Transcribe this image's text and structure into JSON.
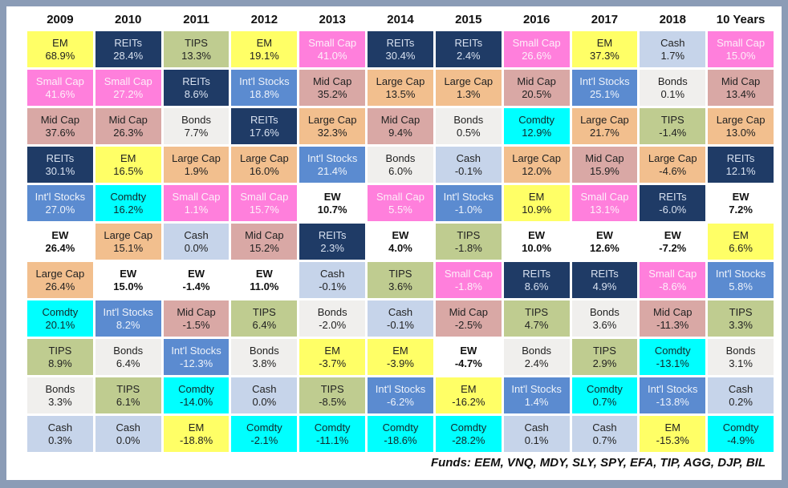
{
  "frame": {
    "border_color": "#8B9CB6",
    "background": "#FFFFFF"
  },
  "footer": {
    "text": "Funds: EEM, VNQ, MDY, SLY, SPY, EFA, TIP, AGG, DJP, BIL"
  },
  "asset_styles": {
    "EM": {
      "bg": "#FFFF66",
      "fg": "#222222"
    },
    "REITs": {
      "bg": "#1F3B66",
      "fg": "#D7E0EF"
    },
    "TIPS": {
      "bg": "#BFCC90",
      "fg": "#222222"
    },
    "Small Cap": {
      "bg": "#FF7FDC",
      "fg": "#FDEFF9"
    },
    "Mid Cap": {
      "bg": "#D9A8A5",
      "fg": "#222222"
    },
    "Int'l Stocks": {
      "bg": "#5B8BD0",
      "fg": "#EDF2FA"
    },
    "Large Cap": {
      "bg": "#F2BF8E",
      "fg": "#222222"
    },
    "EW": {
      "bg": "#FFFFFF",
      "fg": "#111111"
    },
    "Comdty": {
      "bg": "#00FFFF",
      "fg": "#12292B"
    },
    "Bonds": {
      "bg": "#F0EFED",
      "fg": "#222222"
    },
    "Cash": {
      "bg": "#C6D4EA",
      "fg": "#222222"
    }
  },
  "chart_data": {
    "type": "table",
    "title": "Asset class total returns ranked by year",
    "legend_position": "none",
    "grid": "cell-matrix with 3px white gutters",
    "value_format": "percent, one decimal",
    "columns": [
      {
        "label": "2009",
        "rows": [
          {
            "asset": "EM",
            "value": 68.9
          },
          {
            "asset": "Small Cap",
            "value": 41.6
          },
          {
            "asset": "Mid Cap",
            "value": 37.6
          },
          {
            "asset": "REITs",
            "value": 30.1
          },
          {
            "asset": "Int'l Stocks",
            "value": 27.0
          },
          {
            "asset": "EW",
            "value": 26.4
          },
          {
            "asset": "Large Cap",
            "value": 26.4
          },
          {
            "asset": "Comdty",
            "value": 20.1
          },
          {
            "asset": "TIPS",
            "value": 8.9
          },
          {
            "asset": "Bonds",
            "value": 3.3
          },
          {
            "asset": "Cash",
            "value": 0.3
          }
        ]
      },
      {
        "label": "2010",
        "rows": [
          {
            "asset": "REITs",
            "value": 28.4
          },
          {
            "asset": "Small Cap",
            "value": 27.2
          },
          {
            "asset": "Mid Cap",
            "value": 26.3
          },
          {
            "asset": "EM",
            "value": 16.5
          },
          {
            "asset": "Comdty",
            "value": 16.2
          },
          {
            "asset": "Large Cap",
            "value": 15.1
          },
          {
            "asset": "EW",
            "value": 15.0
          },
          {
            "asset": "Int'l Stocks",
            "value": 8.2
          },
          {
            "asset": "Bonds",
            "value": 6.4
          },
          {
            "asset": "TIPS",
            "value": 6.1
          },
          {
            "asset": "Cash",
            "value": 0.0
          }
        ]
      },
      {
        "label": "2011",
        "rows": [
          {
            "asset": "TIPS",
            "value": 13.3
          },
          {
            "asset": "REITs",
            "value": 8.6
          },
          {
            "asset": "Bonds",
            "value": 7.7
          },
          {
            "asset": "Large Cap",
            "value": 1.9
          },
          {
            "asset": "Small Cap",
            "value": 1.1
          },
          {
            "asset": "Cash",
            "value": 0.0
          },
          {
            "asset": "EW",
            "value": -1.4
          },
          {
            "asset": "Mid Cap",
            "value": -1.5
          },
          {
            "asset": "Int'l Stocks",
            "value": -12.3
          },
          {
            "asset": "Comdty",
            "value": -14.0
          },
          {
            "asset": "EM",
            "value": -18.8
          }
        ]
      },
      {
        "label": "2012",
        "rows": [
          {
            "asset": "EM",
            "value": 19.1
          },
          {
            "asset": "Int'l Stocks",
            "value": 18.8
          },
          {
            "asset": "REITs",
            "value": 17.6
          },
          {
            "asset": "Large Cap",
            "value": 16.0
          },
          {
            "asset": "Small Cap",
            "value": 15.7
          },
          {
            "asset": "Mid Cap",
            "value": 15.2
          },
          {
            "asset": "EW",
            "value": 11.0
          },
          {
            "asset": "TIPS",
            "value": 6.4
          },
          {
            "asset": "Bonds",
            "value": 3.8
          },
          {
            "asset": "Cash",
            "value": 0.0
          },
          {
            "asset": "Comdty",
            "value": -2.1
          }
        ]
      },
      {
        "label": "2013",
        "rows": [
          {
            "asset": "Small Cap",
            "value": 41.0
          },
          {
            "asset": "Mid Cap",
            "value": 35.2
          },
          {
            "asset": "Large Cap",
            "value": 32.3
          },
          {
            "asset": "Int'l Stocks",
            "value": 21.4
          },
          {
            "asset": "EW",
            "value": 10.7
          },
          {
            "asset": "REITs",
            "value": 2.3
          },
          {
            "asset": "Cash",
            "value": -0.1
          },
          {
            "asset": "Bonds",
            "value": -2.0
          },
          {
            "asset": "EM",
            "value": -3.7
          },
          {
            "asset": "TIPS",
            "value": -8.5
          },
          {
            "asset": "Comdty",
            "value": -11.1
          }
        ]
      },
      {
        "label": "2014",
        "rows": [
          {
            "asset": "REITs",
            "value": 30.4
          },
          {
            "asset": "Large Cap",
            "value": 13.5
          },
          {
            "asset": "Mid Cap",
            "value": 9.4
          },
          {
            "asset": "Bonds",
            "value": 6.0
          },
          {
            "asset": "Small Cap",
            "value": 5.5
          },
          {
            "asset": "EW",
            "value": 4.0
          },
          {
            "asset": "TIPS",
            "value": 3.6
          },
          {
            "asset": "Cash",
            "value": -0.1
          },
          {
            "asset": "EM",
            "value": -3.9
          },
          {
            "asset": "Int'l Stocks",
            "value": -6.2
          },
          {
            "asset": "Comdty",
            "value": -18.6
          }
        ]
      },
      {
        "label": "2015",
        "rows": [
          {
            "asset": "REITs",
            "value": 2.4
          },
          {
            "asset": "Large Cap",
            "value": 1.3
          },
          {
            "asset": "Bonds",
            "value": 0.5
          },
          {
            "asset": "Cash",
            "value": -0.1
          },
          {
            "asset": "Int'l Stocks",
            "value": -1.0
          },
          {
            "asset": "TIPS",
            "value": -1.8
          },
          {
            "asset": "Small Cap",
            "value": -1.8
          },
          {
            "asset": "Mid Cap",
            "value": -2.5
          },
          {
            "asset": "EW",
            "value": -4.7
          },
          {
            "asset": "EM",
            "value": -16.2
          },
          {
            "asset": "Comdty",
            "value": -28.2
          }
        ]
      },
      {
        "label": "2016",
        "rows": [
          {
            "asset": "Small Cap",
            "value": 26.6
          },
          {
            "asset": "Mid Cap",
            "value": 20.5
          },
          {
            "asset": "Comdty",
            "value": 12.9
          },
          {
            "asset": "Large Cap",
            "value": 12.0
          },
          {
            "asset": "EM",
            "value": 10.9
          },
          {
            "asset": "EW",
            "value": 10.0
          },
          {
            "asset": "REITs",
            "value": 8.6
          },
          {
            "asset": "TIPS",
            "value": 4.7
          },
          {
            "asset": "Bonds",
            "value": 2.4
          },
          {
            "asset": "Int'l Stocks",
            "value": 1.4
          },
          {
            "asset": "Cash",
            "value": 0.1
          }
        ]
      },
      {
        "label": "2017",
        "rows": [
          {
            "asset": "EM",
            "value": 37.3
          },
          {
            "asset": "Int'l Stocks",
            "value": 25.1
          },
          {
            "asset": "Large Cap",
            "value": 21.7
          },
          {
            "asset": "Mid Cap",
            "value": 15.9
          },
          {
            "asset": "Small Cap",
            "value": 13.1
          },
          {
            "asset": "EW",
            "value": 12.6
          },
          {
            "asset": "REITs",
            "value": 4.9
          },
          {
            "asset": "Bonds",
            "value": 3.6
          },
          {
            "asset": "TIPS",
            "value": 2.9
          },
          {
            "asset": "Comdty",
            "value": 0.7
          },
          {
            "asset": "Cash",
            "value": 0.7
          }
        ]
      },
      {
        "label": "2018",
        "rows": [
          {
            "asset": "Cash",
            "value": 1.7
          },
          {
            "asset": "Bonds",
            "value": 0.1
          },
          {
            "asset": "TIPS",
            "value": -1.4
          },
          {
            "asset": "Large Cap",
            "value": -4.6
          },
          {
            "asset": "REITs",
            "value": -6.0
          },
          {
            "asset": "EW",
            "value": -7.2
          },
          {
            "asset": "Small Cap",
            "value": -8.6
          },
          {
            "asset": "Mid Cap",
            "value": -11.3
          },
          {
            "asset": "Comdty",
            "value": -13.1
          },
          {
            "asset": "Int'l Stocks",
            "value": -13.8
          },
          {
            "asset": "EM",
            "value": -15.3
          }
        ]
      },
      {
        "label": "10 Years",
        "rows": [
          {
            "asset": "Small Cap",
            "value": 15.0
          },
          {
            "asset": "Mid Cap",
            "value": 13.4
          },
          {
            "asset": "Large Cap",
            "value": 13.0
          },
          {
            "asset": "REITs",
            "value": 12.1
          },
          {
            "asset": "EW",
            "value": 7.2
          },
          {
            "asset": "EM",
            "value": 6.6
          },
          {
            "asset": "Int'l Stocks",
            "value": 5.8
          },
          {
            "asset": "TIPS",
            "value": 3.3
          },
          {
            "asset": "Bonds",
            "value": 3.1
          },
          {
            "asset": "Cash",
            "value": 0.2
          },
          {
            "asset": "Comdty",
            "value": -4.9
          }
        ]
      }
    ]
  }
}
